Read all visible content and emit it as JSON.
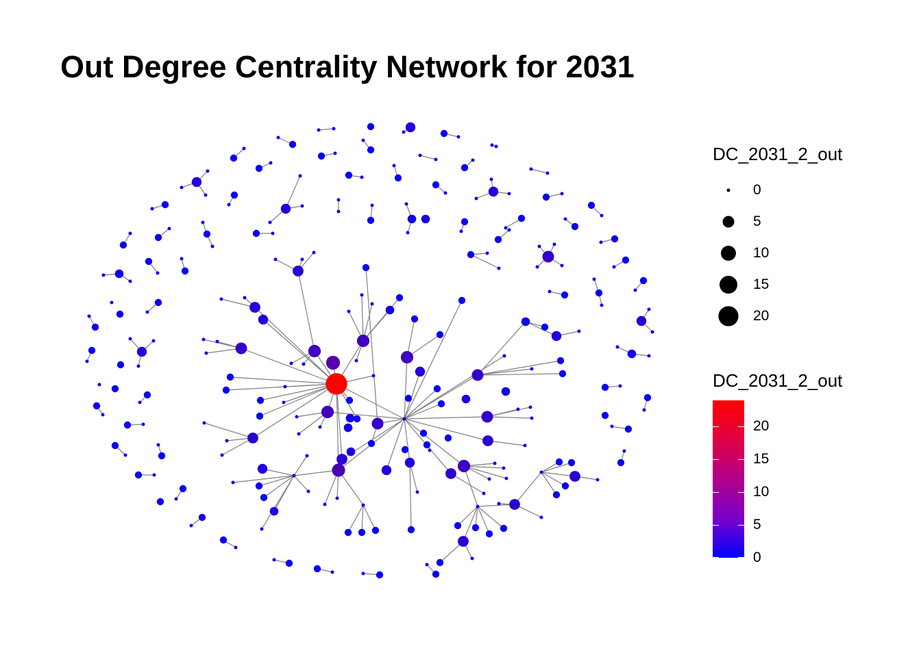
{
  "title": "Out Degree Centrality Network for 2031",
  "legend": {
    "size_title": "DC_2031_2_out",
    "size_breaks": [
      "0",
      "5",
      "10",
      "15",
      "20"
    ],
    "color_title": "DC_2031_2_out",
    "color_breaks": [
      "20",
      "15",
      "10",
      "5",
      "0"
    ],
    "color_range": [
      0,
      24
    ],
    "color_low": "#0000ff",
    "color_high": "#ff0000"
  },
  "edge_color": "#808080",
  "chart_data": {
    "type": "network",
    "measure": "out-degree centrality",
    "max_value": 24,
    "components": [
      {
        "type": "hub-tree",
        "max_out_degree": 24
      },
      {
        "type": "small-stars-and-dyads"
      }
    ]
  }
}
